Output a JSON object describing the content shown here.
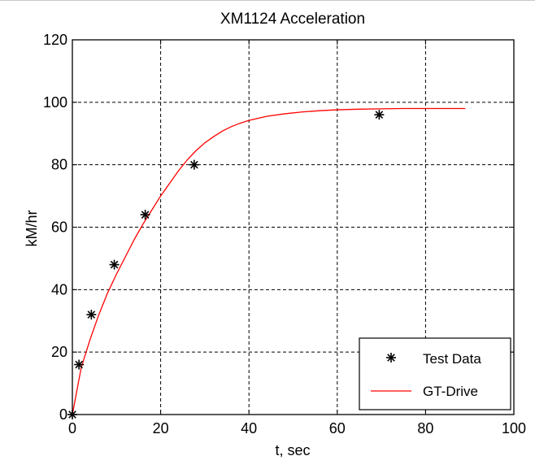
{
  "chart_data": {
    "type": "line",
    "title": "XM1124 Acceleration",
    "xlabel": "t, sec",
    "ylabel": "kM/hr",
    "xlim": [
      0,
      100
    ],
    "ylim": [
      0,
      120
    ],
    "x_ticks": [
      0,
      20,
      40,
      60,
      80,
      100
    ],
    "y_ticks": [
      0,
      20,
      40,
      60,
      80,
      100,
      120
    ],
    "grid": true,
    "legend_position": "bottom-right",
    "series": [
      {
        "name": "Test Data",
        "style": "markers",
        "marker": "asterisk",
        "color": "#000000",
        "x": [
          0,
          1.5,
          4.3,
          9.5,
          16.5,
          27.6,
          69.5
        ],
        "y": [
          0,
          16,
          32,
          48,
          64,
          80,
          96
        ]
      },
      {
        "name": "GT-Drive",
        "style": "line",
        "color": "#ff0000",
        "x": [
          0,
          2,
          4,
          6,
          8,
          10,
          12,
          14,
          16,
          18,
          20,
          22,
          24,
          26,
          28,
          30,
          32,
          34,
          36,
          38,
          40,
          44,
          48,
          52,
          56,
          60,
          65,
          70,
          75,
          80,
          85,
          89
        ],
        "y": [
          0,
          15,
          24,
          32,
          39,
          45,
          50.5,
          56,
          61,
          65.5,
          70,
          74,
          78,
          81.5,
          84.5,
          87,
          89,
          90.8,
          92.2,
          93.3,
          94.2,
          95.5,
          96.3,
          96.9,
          97.3,
          97.6,
          97.8,
          97.9,
          98,
          98,
          98,
          98
        ]
      }
    ]
  }
}
